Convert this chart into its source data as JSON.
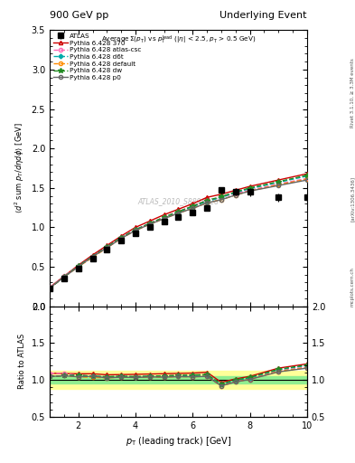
{
  "title_left": "900 GeV pp",
  "title_right": "Underlying Event",
  "subtitle": "AverageΣ(p_{T}) vs p_{T}^{lead} (|η| < 2.5, p_{T} > 0.5 GeV)",
  "xlabel": "p_{T} (leading track) [GeV]",
  "ylabel": "⟨d^{2} sum p_{T}/dηdϕ⟩ [GeV]",
  "ylabel_ratio": "Ratio to ATLAS",
  "watermark": "ATLAS_2010_S8894728",
  "ylim_main": [
    0.0,
    3.5
  ],
  "ylim_ratio": [
    0.5,
    2.0
  ],
  "xlim": [
    1.0,
    10.0
  ],
  "atlas_x": [
    1.0,
    1.5,
    2.0,
    2.5,
    3.0,
    3.5,
    4.0,
    4.5,
    5.0,
    5.5,
    6.0,
    6.5,
    7.0,
    7.5,
    8.0,
    9.0,
    10.0
  ],
  "atlas_y": [
    0.22,
    0.35,
    0.48,
    0.6,
    0.72,
    0.83,
    0.93,
    1.0,
    1.07,
    1.13,
    1.19,
    1.25,
    1.47,
    1.45,
    1.45,
    1.38,
    1.38
  ],
  "atlas_yerr": [
    0.01,
    0.01,
    0.01,
    0.01,
    0.01,
    0.01,
    0.01,
    0.01,
    0.01,
    0.02,
    0.02,
    0.03,
    0.04,
    0.04,
    0.05,
    0.05,
    0.05
  ],
  "py370_x": [
    1.0,
    1.5,
    2.0,
    2.5,
    3.0,
    3.5,
    4.0,
    4.5,
    5.0,
    5.5,
    6.0,
    6.5,
    7.0,
    7.5,
    8.0,
    9.0,
    10.0
  ],
  "py370_y": [
    0.24,
    0.38,
    0.52,
    0.65,
    0.77,
    0.89,
    1.0,
    1.08,
    1.16,
    1.23,
    1.3,
    1.38,
    1.42,
    1.47,
    1.52,
    1.6,
    1.68
  ],
  "pyatl_x": [
    1.0,
    1.5,
    2.0,
    2.5,
    3.0,
    3.5,
    4.0,
    4.5,
    5.0,
    5.5,
    6.0,
    6.5,
    7.0,
    7.5,
    8.0,
    9.0,
    10.0
  ],
  "pyatl_y": [
    0.24,
    0.38,
    0.51,
    0.63,
    0.75,
    0.87,
    0.97,
    1.05,
    1.13,
    1.2,
    1.27,
    1.34,
    1.38,
    1.43,
    1.47,
    1.55,
    1.62
  ],
  "pyd6t_x": [
    1.0,
    1.5,
    2.0,
    2.5,
    3.0,
    3.5,
    4.0,
    4.5,
    5.0,
    5.5,
    6.0,
    6.5,
    7.0,
    7.5,
    8.0,
    9.0,
    10.0
  ],
  "pyd6t_y": [
    0.23,
    0.37,
    0.51,
    0.63,
    0.75,
    0.87,
    0.97,
    1.05,
    1.12,
    1.19,
    1.26,
    1.33,
    1.38,
    1.44,
    1.49,
    1.57,
    1.65
  ],
  "pydef_x": [
    1.0,
    1.5,
    2.0,
    2.5,
    3.0,
    3.5,
    4.0,
    4.5,
    5.0,
    5.5,
    6.0,
    6.5,
    7.0,
    7.5,
    8.0,
    9.0,
    10.0
  ],
  "pydef_y": [
    0.23,
    0.37,
    0.5,
    0.62,
    0.74,
    0.86,
    0.96,
    1.04,
    1.11,
    1.18,
    1.24,
    1.31,
    1.35,
    1.41,
    1.46,
    1.54,
    1.61
  ],
  "pydw_x": [
    1.0,
    1.5,
    2.0,
    2.5,
    3.0,
    3.5,
    4.0,
    4.5,
    5.0,
    5.5,
    6.0,
    6.5,
    7.0,
    7.5,
    8.0,
    9.0,
    10.0
  ],
  "pydw_y": [
    0.23,
    0.37,
    0.51,
    0.63,
    0.75,
    0.87,
    0.97,
    1.05,
    1.13,
    1.2,
    1.27,
    1.34,
    1.39,
    1.45,
    1.5,
    1.58,
    1.66
  ],
  "pyp0_x": [
    1.0,
    1.5,
    2.0,
    2.5,
    3.0,
    3.5,
    4.0,
    4.5,
    5.0,
    5.5,
    6.0,
    6.5,
    7.0,
    7.5,
    8.0,
    9.0,
    10.0
  ],
  "pyp0_y": [
    0.23,
    0.37,
    0.5,
    0.63,
    0.74,
    0.86,
    0.96,
    1.04,
    1.11,
    1.18,
    1.24,
    1.31,
    1.35,
    1.41,
    1.46,
    1.53,
    1.6
  ],
  "colors": {
    "py370": "#cc0000",
    "pyatl": "#ff69b4",
    "pyd6t": "#00aaaa",
    "pydef": "#ff8c00",
    "pydw": "#228b22",
    "pyp0": "#666666"
  },
  "band_yellow": [
    0.88,
    1.12
  ],
  "band_green": [
    0.95,
    1.05
  ],
  "bg_color": "#ffffff"
}
